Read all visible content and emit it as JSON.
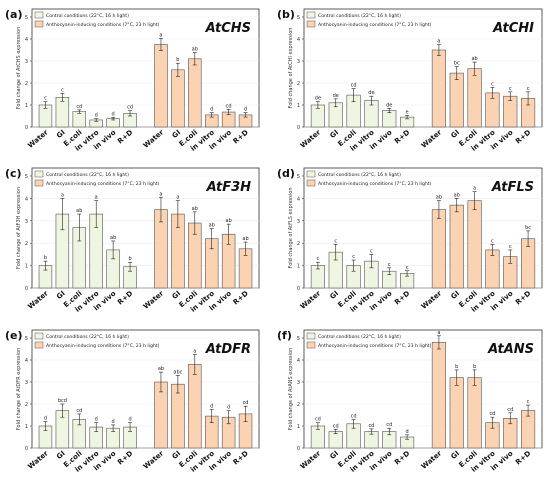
{
  "figure": {
    "colors": {
      "control": "#eef5e0",
      "anthocyanin": "#fbd3b3",
      "bar_stroke": "#555555",
      "grid": "#eaeaea",
      "axis": "#333333"
    },
    "legend": {
      "control": "Control conditions (22°C, 16 h light)",
      "anthocyanin": "Anthocyanin-inducing conditions (7°C, 23 h light)"
    }
  },
  "chart_data": [
    {
      "panel": "(a)",
      "type": "bar",
      "title": "AtCHS",
      "ylabel": "Fold change of AtCHS expression",
      "ylim": [
        0,
        5
      ],
      "yticks": [
        0,
        1,
        2,
        3,
        4,
        5
      ],
      "categories": [
        "Water",
        "GI",
        "E.coli",
        "in vitro",
        "in vivo",
        "R+D"
      ],
      "series": [
        {
          "values": [
            1.0,
            1.35,
            0.7,
            0.32,
            0.38,
            0.62
          ],
          "errors": [
            0.15,
            0.18,
            0.08,
            0.06,
            0.06,
            0.12
          ],
          "letters": [
            "c",
            "c",
            "cd",
            "d",
            "d",
            "cd"
          ]
        },
        {
          "values": [
            3.75,
            2.6,
            3.1,
            0.55,
            0.68,
            0.55
          ],
          "errors": [
            0.28,
            0.3,
            0.28,
            0.1,
            0.12,
            0.1
          ],
          "letters": [
            "a",
            "b",
            "ab",
            "d",
            "cd",
            "d"
          ]
        }
      ]
    },
    {
      "panel": "(b)",
      "type": "bar",
      "title": "AtCHI",
      "ylabel": "Fold change of AtCHI expression",
      "ylim": [
        0,
        5
      ],
      "yticks": [
        0,
        1,
        2,
        3,
        4,
        5
      ],
      "categories": [
        "Water",
        "GI",
        "E.coli",
        "in vitro",
        "in vivo",
        "R+D"
      ],
      "series": [
        {
          "values": [
            1.0,
            1.1,
            1.45,
            1.2,
            0.75,
            0.45
          ],
          "errors": [
            0.15,
            0.18,
            0.3,
            0.2,
            0.1,
            0.08
          ],
          "letters": [
            "de",
            "de",
            "cd",
            "de",
            "de",
            "e"
          ]
        },
        {
          "values": [
            3.5,
            2.45,
            2.65,
            1.55,
            1.4,
            1.3
          ],
          "errors": [
            0.25,
            0.3,
            0.3,
            0.25,
            0.2,
            0.3
          ],
          "letters": [
            "a",
            "bc",
            "ab",
            "c",
            "c",
            "c"
          ]
        }
      ]
    },
    {
      "panel": "(c)",
      "type": "bar",
      "title": "AtF3H",
      "ylabel": "Fold change of AtF3H expression",
      "ylim": [
        0,
        5
      ],
      "yticks": [
        0,
        1,
        2,
        3,
        4,
        5
      ],
      "categories": [
        "Water",
        "GI",
        "E.coli",
        "in vitro",
        "in vivo",
        "R+D"
      ],
      "series": [
        {
          "values": [
            1.0,
            3.3,
            2.7,
            3.3,
            1.7,
            0.95
          ],
          "errors": [
            0.2,
            0.7,
            0.6,
            0.6,
            0.4,
            0.2
          ],
          "letters": [
            "b",
            "a",
            "ab",
            "a",
            "ab",
            "b"
          ]
        },
        {
          "values": [
            3.5,
            3.3,
            2.9,
            2.2,
            2.4,
            1.75
          ],
          "errors": [
            0.55,
            0.6,
            0.5,
            0.45,
            0.45,
            0.3
          ],
          "letters": [
            "a",
            "a",
            "ab",
            "ab",
            "ab",
            "ab"
          ]
        }
      ]
    },
    {
      "panel": "(d)",
      "type": "bar",
      "title": "AtFLS",
      "ylabel": "Fold change of AtFLS expression",
      "ylim": [
        0,
        5
      ],
      "yticks": [
        0,
        1,
        2,
        3,
        4,
        5
      ],
      "categories": [
        "Water",
        "GI",
        "E.coli",
        "in vitro",
        "in vivo",
        "R+D"
      ],
      "series": [
        {
          "values": [
            1.0,
            1.6,
            1.0,
            1.2,
            0.75,
            0.65
          ],
          "errors": [
            0.15,
            0.35,
            0.25,
            0.3,
            0.15,
            0.12
          ],
          "letters": [
            "c",
            "c",
            "c",
            "c",
            "c",
            "c"
          ]
        },
        {
          "values": [
            3.5,
            3.7,
            3.9,
            1.7,
            1.4,
            2.2
          ],
          "errors": [
            0.4,
            0.3,
            0.4,
            0.25,
            0.3,
            0.35
          ],
          "letters": [
            "ab",
            "ab",
            "a",
            "c",
            "c",
            "bc"
          ]
        }
      ]
    },
    {
      "panel": "(e)",
      "type": "bar",
      "title": "AtDFR",
      "ylabel": "Fold change of AtDFR expression",
      "ylim": [
        0,
        5
      ],
      "yticks": [
        0,
        1,
        2,
        3,
        4,
        5
      ],
      "categories": [
        "Water",
        "GI",
        "E.coli",
        "in vitro",
        "in vivo",
        "R+D"
      ],
      "series": [
        {
          "values": [
            1.0,
            1.7,
            1.3,
            0.95,
            0.9,
            0.95
          ],
          "errors": [
            0.2,
            0.3,
            0.25,
            0.2,
            0.15,
            0.2
          ],
          "letters": [
            "d",
            "bcd",
            "cd",
            "d",
            "d",
            "d"
          ]
        },
        {
          "values": [
            3.0,
            2.9,
            3.8,
            1.45,
            1.4,
            1.55
          ],
          "errors": [
            0.45,
            0.4,
            0.45,
            0.3,
            0.3,
            0.35
          ],
          "letters": [
            "ab",
            "abc",
            "a",
            "d",
            "d",
            "cd"
          ]
        }
      ]
    },
    {
      "panel": "(f)",
      "type": "bar",
      "title": "AtANS",
      "ylabel": "Fold change of AtANS expression",
      "ylim": [
        0,
        5
      ],
      "yticks": [
        0,
        1,
        2,
        3,
        4,
        5
      ],
      "categories": [
        "Water",
        "GI",
        "E.coli",
        "in vitro",
        "in vivo",
        "R+D"
      ],
      "series": [
        {
          "values": [
            1.0,
            0.75,
            1.1,
            0.75,
            0.75,
            0.5
          ],
          "errors": [
            0.15,
            0.1,
            0.2,
            0.12,
            0.15,
            0.1
          ],
          "letters": [
            "cd",
            "cd",
            "cd",
            "cd",
            "cd",
            "d"
          ]
        },
        {
          "values": [
            4.8,
            3.2,
            3.2,
            1.15,
            1.35,
            1.7
          ],
          "errors": [
            0.3,
            0.35,
            0.35,
            0.25,
            0.25,
            0.25
          ],
          "letters": [
            "a",
            "b",
            "b",
            "cd",
            "cd",
            "c"
          ]
        }
      ]
    }
  ]
}
